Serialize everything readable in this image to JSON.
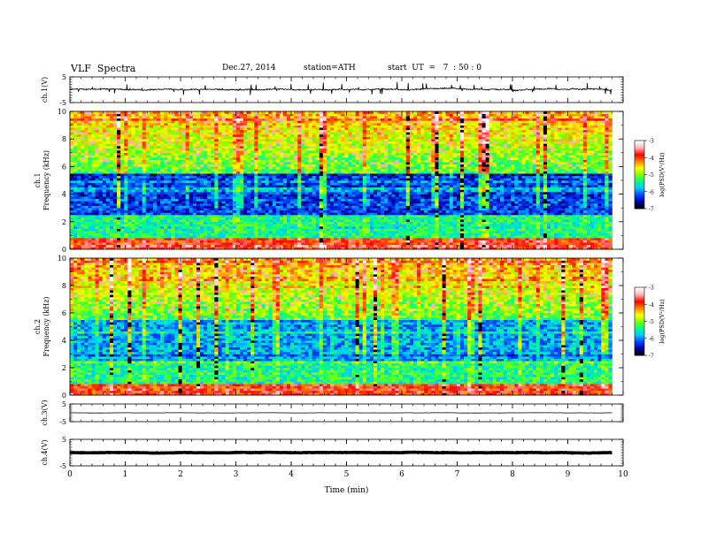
{
  "header": {
    "title": "VLF  Spectra",
    "date": "Dec.27, 2014",
    "station": "station=ATH",
    "start": "start  UT  =   7  : 50 : 0"
  },
  "chart_data": [
    {
      "type": "line",
      "panel": "ch1-waveform",
      "ylabel": "ch.1(V)",
      "ylim": [
        -5,
        5
      ],
      "yticks": [
        "5",
        "-5"
      ],
      "x_range_min": [
        0,
        9.8
      ],
      "baseline": 0.1,
      "noise": 0.35,
      "spikes": true
    },
    {
      "type": "heatmap",
      "panel": "ch1-spectrogram",
      "ylabel": [
        "ch.1",
        "Frequency  (kHz)"
      ],
      "ylim": [
        0,
        10
      ],
      "yticks": [
        "0",
        "2",
        "4",
        "6",
        "8",
        "10"
      ],
      "x_range_min": [
        0,
        9.8
      ],
      "colorbar": {
        "label": "log(PSD(V²/Hz)",
        "range": [
          -7,
          -3
        ],
        "ticks": [
          "-3",
          "-4",
          "-5",
          "-6",
          "-7"
        ]
      }
    },
    {
      "type": "heatmap",
      "panel": "ch2-spectrogram",
      "ylabel": [
        "ch.2",
        "Frequency  (kHz)"
      ],
      "ylim": [
        0,
        10
      ],
      "yticks": [
        "0",
        "2",
        "4",
        "6",
        "8",
        "10"
      ],
      "x_range_min": [
        0,
        9.8
      ],
      "colorbar": {
        "label": "log(PSD(V²/Hz)",
        "range": [
          -7,
          -3
        ],
        "ticks": [
          "-3",
          "-4",
          "-5",
          "-6",
          "-7"
        ]
      }
    },
    {
      "type": "line",
      "panel": "ch3-waveform",
      "ylabel": "ch.3(V)",
      "ylim": [
        -5,
        5
      ],
      "yticks": [
        "5",
        "-5"
      ],
      "x_range_min": [
        0,
        9.8
      ],
      "baseline": 0.0,
      "noise": 0.08
    },
    {
      "type": "line",
      "panel": "ch4-waveform",
      "ylabel": "ch.4(V)",
      "ylim": [
        -5,
        5
      ],
      "yticks": [
        "5",
        "-5"
      ],
      "x_range_min": [
        0,
        9.8
      ],
      "baseline": 0.0,
      "noise": 0.12,
      "thick": true
    }
  ],
  "xaxis": {
    "label": "Time  (min)",
    "range": [
      0,
      10
    ],
    "ticks": [
      "0",
      "1",
      "2",
      "3",
      "4",
      "5",
      "6",
      "7",
      "8",
      "9",
      "10"
    ]
  },
  "colors": {
    "colormap": [
      "#000000",
      "#0000aa",
      "#0044ff",
      "#00c8ff",
      "#00ff88",
      "#80ff00",
      "#ffff00",
      "#ff8800",
      "#ff0000",
      "#ffb0b0",
      "#ffffff"
    ]
  }
}
